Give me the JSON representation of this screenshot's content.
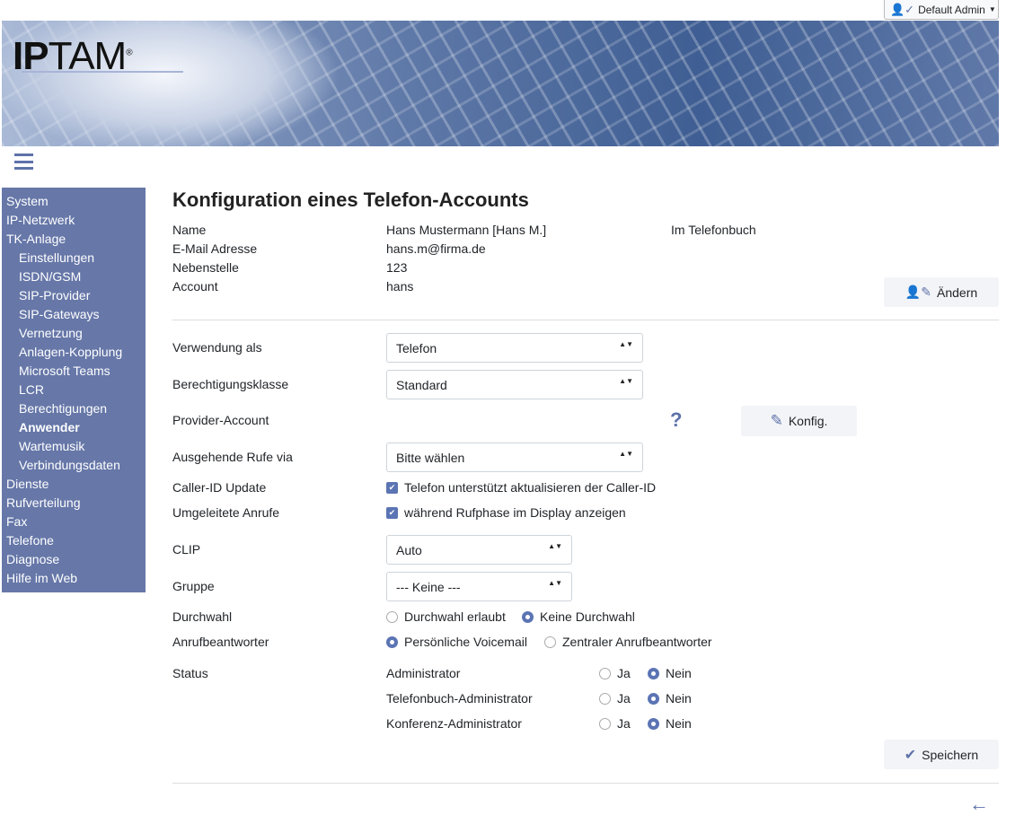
{
  "header": {
    "user_label": "Default Admin",
    "logo_text": "IPTAM"
  },
  "sidebar": {
    "items": [
      {
        "label": "System",
        "level": 0
      },
      {
        "label": "IP-Netzwerk",
        "level": 0
      },
      {
        "label": "TK-Anlage",
        "level": 0
      },
      {
        "label": "Einstellungen",
        "level": 1
      },
      {
        "label": "ISDN/GSM",
        "level": 1
      },
      {
        "label": "SIP-Provider",
        "level": 1
      },
      {
        "label": "SIP-Gateways",
        "level": 1
      },
      {
        "label": "Vernetzung",
        "level": 1
      },
      {
        "label": "Anlagen-Kopplung",
        "level": 1
      },
      {
        "label": "Microsoft Teams",
        "level": 1
      },
      {
        "label": "LCR",
        "level": 1
      },
      {
        "label": "Berechtigungen",
        "level": 1
      },
      {
        "label": "Anwender",
        "level": 1,
        "active": true
      },
      {
        "label": "Wartemusik",
        "level": 1
      },
      {
        "label": "Verbindungsdaten",
        "level": 1
      },
      {
        "label": "Dienste",
        "level": 0
      },
      {
        "label": "Rufverteilung",
        "level": 0
      },
      {
        "label": "Fax",
        "level": 0
      },
      {
        "label": "Telefone",
        "level": 0
      },
      {
        "label": "Diagnose",
        "level": 0
      },
      {
        "label": "Hilfe im Web",
        "level": 0
      }
    ]
  },
  "main": {
    "title": "Konfiguration eines Telefon-Accounts",
    "info": {
      "name_label": "Name",
      "name_value": "Hans Mustermann [Hans M.]",
      "phonebook": "Im Telefonbuch",
      "email_label": "E-Mail Adresse",
      "email_value": "hans.m@firma.de",
      "ext_label": "Nebenstelle",
      "ext_value": "123",
      "account_label": "Account",
      "account_value": "hans",
      "edit_button": "Ändern"
    },
    "form": {
      "usage_label": "Verwendung als",
      "usage_value": "Telefon",
      "class_label": "Berechtigungsklasse",
      "class_value": "Standard",
      "provider_label": "Provider-Account",
      "help": "?",
      "config_button": "Konfig.",
      "outgoing_label": "Ausgehende Rufe via",
      "outgoing_value": "Bitte wählen",
      "callerid_label": "Caller-ID Update",
      "callerid_text": "Telefon unterstützt aktualisieren der Caller-ID",
      "callerid_checked": true,
      "redirect_label": "Umgeleitete Anrufe",
      "redirect_text": "während Rufphase im Display anzeigen",
      "redirect_checked": true,
      "clip_label": "CLIP",
      "clip_value": "Auto",
      "group_label": "Gruppe",
      "group_value": "--- Keine ---",
      "ddi_label": "Durchwahl",
      "ddi_opt1": "Durchwahl erlaubt",
      "ddi_opt2": "Keine Durchwahl",
      "ddi_selected": "Keine Durchwahl",
      "vm_label": "Anrufbeantworter",
      "vm_opt1": "Persönliche Voicemail",
      "vm_opt2": "Zentraler Anrufbeantworter",
      "vm_selected": "Persönliche Voicemail",
      "status_label": "Status",
      "status_rows": [
        {
          "label": "Administrator",
          "yes": "Ja",
          "no": "Nein",
          "selected": "Nein"
        },
        {
          "label": "Telefonbuch-Administrator",
          "yes": "Ja",
          "no": "Nein",
          "selected": "Nein"
        },
        {
          "label": "Konferenz-Administrator",
          "yes": "Ja",
          "no": "Nein",
          "selected": "Nein"
        }
      ],
      "save_button": "Speichern"
    }
  },
  "colors": {
    "accent": "#5b74b4",
    "sidebar": "#6677a8"
  }
}
